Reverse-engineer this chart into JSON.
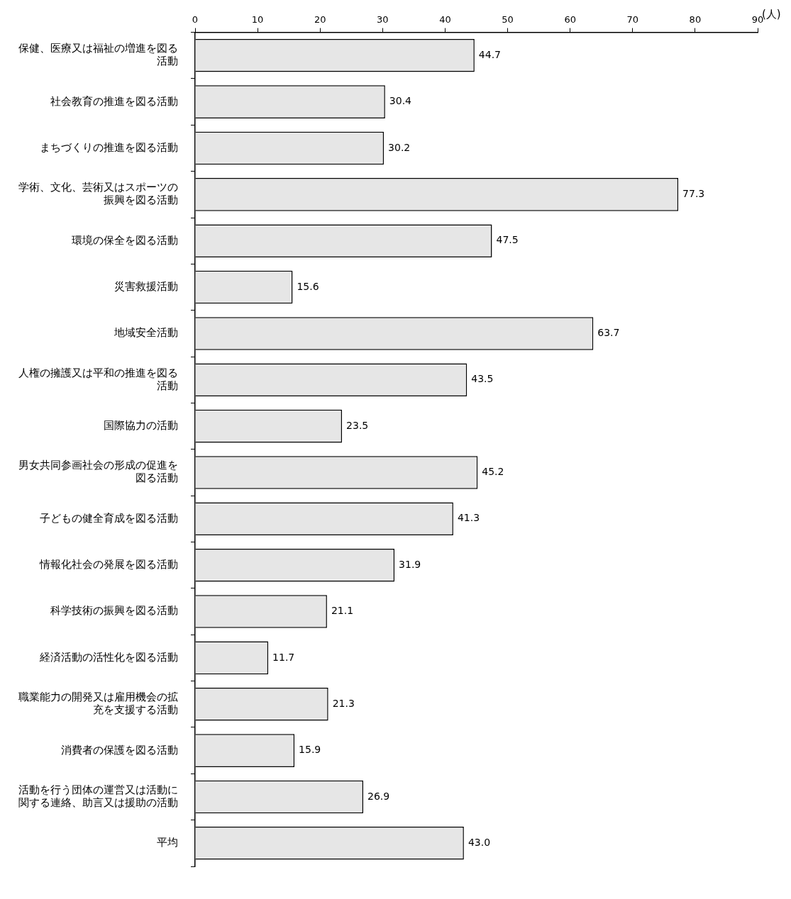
{
  "chart_data": {
    "type": "bar",
    "orientation": "horizontal",
    "xlabel": "(人)",
    "categories": [
      "保健、医療又は福祉の増進を図る活動",
      "社会教育の推進を図る活動",
      "まちづくりの推進を図る活動",
      "学術、文化、芸術又はスポーツの振興を図る活動",
      "環境の保全を図る活動",
      "災害救援活動",
      "地域安全活動",
      "人権の擁護又は平和の推進を図る活動",
      "国際協力の活動",
      "男女共同参画社会の形成の促進を図る活動",
      "子どもの健全育成を図る活動",
      "情報化社会の発展を図る活動",
      "科学技術の振興を図る活動",
      "経済活動の活性化を図る活動",
      "職業能力の開発又は雇用機会の拡充を支援する活動",
      "消費者の保護を図る活動",
      "活動を行う団体の運営又は活動に関する連絡、助言又は援助の活動",
      "平均"
    ],
    "values": [
      44.7,
      30.4,
      30.2,
      77.3,
      47.5,
      15.6,
      63.7,
      43.5,
      23.5,
      45.2,
      41.3,
      31.9,
      21.1,
      11.7,
      21.3,
      15.9,
      26.9,
      43.0
    ],
    "value_labels": [
      "44.7",
      "30.4",
      "30.2",
      "77.3",
      "47.5",
      "15.6",
      "63.7",
      "43.5",
      "23.5",
      "45.2",
      "41.3",
      "31.9",
      "21.1",
      "11.7",
      "21.3",
      "15.9",
      "26.9",
      "43.0"
    ],
    "color": "#e6e6e6",
    "xlim": [
      0,
      90
    ],
    "xticks": [
      0,
      10,
      20,
      30,
      40,
      50,
      60,
      70,
      80,
      90
    ],
    "grid": false,
    "legend": false
  }
}
